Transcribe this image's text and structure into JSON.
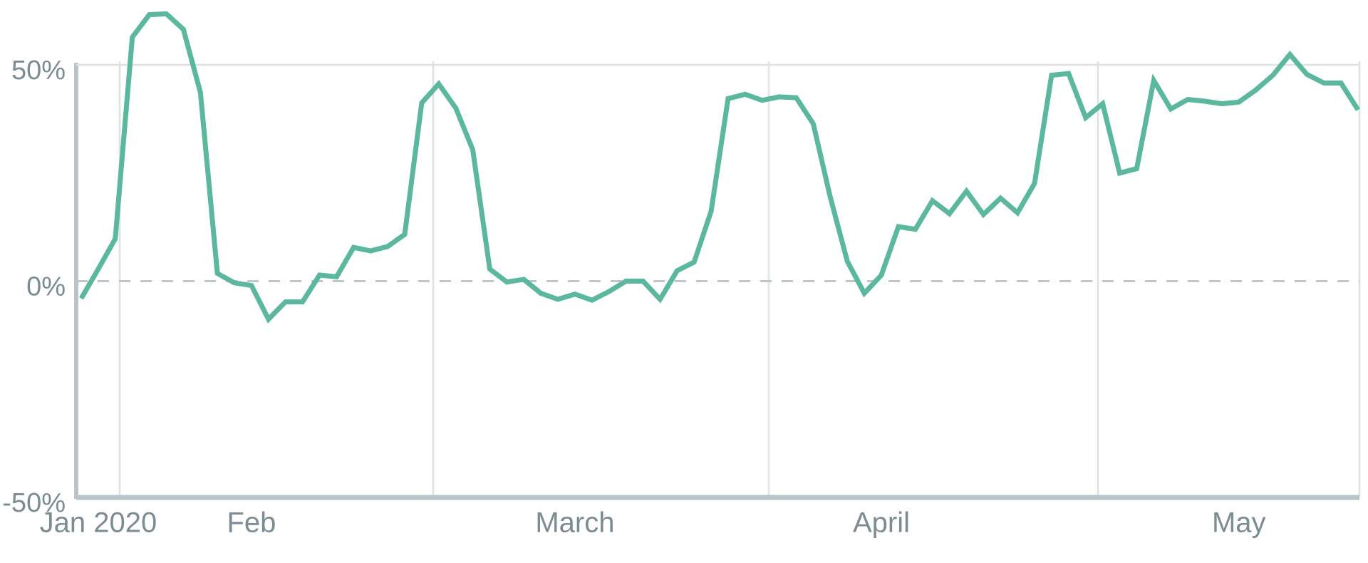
{
  "chart_data": {
    "type": "line",
    "categories": [
      null,
      "Jan 2020",
      null,
      null,
      null,
      null,
      null,
      null,
      null,
      null,
      "Feb",
      null,
      null,
      null,
      null,
      null,
      null,
      null,
      null,
      null,
      null,
      null,
      null,
      null,
      null,
      null,
      null,
      null,
      null,
      "March",
      null,
      null,
      null,
      null,
      null,
      null,
      null,
      null,
      null,
      null,
      null,
      null,
      null,
      null,
      null,
      null,
      null,
      "April",
      null,
      null,
      null,
      null,
      null,
      null,
      null,
      null,
      null,
      null,
      null,
      null,
      null,
      null,
      null,
      null,
      null,
      null,
      null,
      null,
      "May",
      null,
      null,
      null,
      null,
      null,
      null,
      null
    ],
    "series": [
      {
        "color": "#5bb89f",
        "values": [
          -4,
          2.8,
          9.8,
          56.4,
          61.6,
          61.8,
          58.2,
          43.6,
          1.8,
          -0.4,
          -1,
          -8.8,
          -4.8,
          -4.8,
          1.4,
          1,
          7.8,
          7,
          8,
          10.8,
          41.2,
          45.6,
          40,
          30.4,
          2.8,
          -0.2,
          0.4,
          -2.8,
          -4.2,
          -3,
          -4.4,
          -2.4,
          0,
          0,
          -4.2,
          2.4,
          4.4,
          16.2,
          42.2,
          43.2,
          41.8,
          42.6,
          42.4,
          36.4,
          19.4,
          4.6,
          -2.8,
          1.4,
          12.6,
          12,
          18.6,
          15.6,
          20.8,
          15.4,
          19.2,
          15.8,
          22.6,
          47.6,
          48,
          37.8,
          41,
          25,
          26,
          46.4,
          39.8,
          42,
          41.6,
          41,
          41.4,
          44.2,
          47.6,
          52.4,
          47.8,
          45.8,
          45.8,
          39.6
        ]
      }
    ],
    "ylim": [
      -50,
      50
    ],
    "yticks": [
      {
        "value": -50,
        "label": "-50%"
      },
      {
        "value": 0,
        "label": "0%"
      },
      {
        "value": 50,
        "label": "50%"
      }
    ],
    "grid": true
  }
}
